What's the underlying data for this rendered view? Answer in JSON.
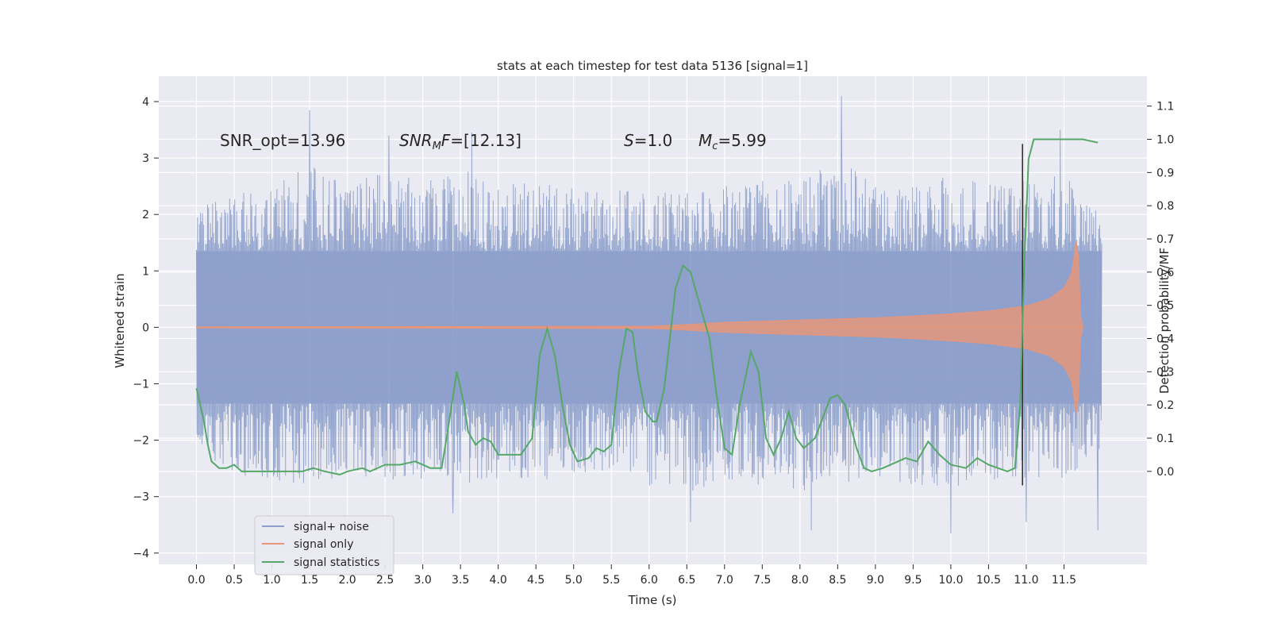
{
  "chart_data": {
    "type": "line",
    "title": "stats at each timestep for test data 5136 [signal=1]",
    "xlabel": "Time (s)",
    "ylabel_left": "Whitened strain",
    "ylabel_right": "Detection probability/MF",
    "xlim": [
      -0.5,
      12.6
    ],
    "ylim_left": [
      -4.2,
      4.45
    ],
    "ylim_right": [
      -0.28,
      1.19
    ],
    "x_ticks": [
      0.0,
      0.5,
      1.0,
      1.5,
      2.0,
      2.5,
      3.0,
      3.5,
      4.0,
      4.5,
      5.0,
      5.5,
      6.0,
      6.5,
      7.0,
      7.5,
      8.0,
      8.5,
      9.0,
      9.5,
      10.0,
      10.5,
      11.0,
      11.5
    ],
    "x_tick_labels": [
      "0.0",
      "0.5",
      "1.0",
      "1.5",
      "2.0",
      "2.5",
      "3.0",
      "3.5",
      "4.0",
      "4.5",
      "5.0",
      "5.5",
      "6.0",
      "6.5",
      "7.0",
      "7.5",
      "8.0",
      "8.5",
      "9.0",
      "9.5",
      "10.0",
      "10.5",
      "11.0",
      "11.5"
    ],
    "y_left_ticks": [
      -4,
      -3,
      -2,
      -1,
      0,
      1,
      2,
      3,
      4
    ],
    "y_left_tick_labels": [
      "−4",
      "−3",
      "−2",
      "−1",
      "0",
      "1",
      "2",
      "3",
      "4"
    ],
    "y_right_ticks": [
      0.0,
      0.1,
      0.2,
      0.3,
      0.4,
      0.5,
      0.6,
      0.7,
      0.8,
      0.9,
      1.0,
      1.1
    ],
    "y_right_tick_labels": [
      "0.0",
      "0.1",
      "0.2",
      "0.3",
      "0.4",
      "0.5",
      "0.6",
      "0.7",
      "0.8",
      "0.9",
      "1.0",
      "1.1"
    ],
    "grid": true,
    "legend_position": "lower-left",
    "annotations": [
      {
        "id": "snr-opt",
        "label": "SNR_opt=13.96"
      },
      {
        "id": "snr-mf",
        "label": "SNR_MF=[12.13]"
      },
      {
        "id": "s-val",
        "label": "S=1.0"
      },
      {
        "id": "mc-val",
        "label": "M_c=5.99"
      }
    ],
    "vline_x": 10.95,
    "series": [
      {
        "id": "noise",
        "name": "signal+ noise",
        "color": "#8da0cb",
        "axis": "left",
        "x_range": [
          0.0,
          12.0
        ],
        "envelope_upper": [
          [
            0.0,
            2.1
          ],
          [
            0.5,
            2.4
          ],
          [
            1.0,
            2.5
          ],
          [
            1.5,
            2.9
          ],
          [
            2.0,
            2.5
          ],
          [
            2.5,
            2.8
          ],
          [
            3.0,
            2.6
          ],
          [
            3.5,
            2.9
          ],
          [
            4.0,
            2.6
          ],
          [
            4.5,
            2.6
          ],
          [
            5.0,
            2.5
          ],
          [
            5.5,
            2.4
          ],
          [
            6.0,
            2.5
          ],
          [
            6.5,
            2.4
          ],
          [
            7.0,
            2.5
          ],
          [
            7.5,
            2.7
          ],
          [
            8.0,
            2.6
          ],
          [
            8.5,
            3.0
          ],
          [
            9.0,
            2.5
          ],
          [
            9.5,
            2.5
          ],
          [
            10.0,
            2.7
          ],
          [
            10.5,
            2.6
          ],
          [
            11.0,
            2.6
          ],
          [
            11.5,
            2.7
          ],
          [
            12.0,
            2.0
          ]
        ],
        "envelope_lower": [
          [
            0.0,
            -2.3
          ],
          [
            0.5,
            -2.6
          ],
          [
            1.0,
            -2.7
          ],
          [
            1.5,
            -2.8
          ],
          [
            2.0,
            -2.6
          ],
          [
            2.5,
            -2.8
          ],
          [
            3.0,
            -2.7
          ],
          [
            3.5,
            -2.9
          ],
          [
            4.0,
            -2.7
          ],
          [
            4.5,
            -2.8
          ],
          [
            5.0,
            -2.6
          ],
          [
            5.5,
            -2.7
          ],
          [
            6.0,
            -2.8
          ],
          [
            6.5,
            -3.0
          ],
          [
            7.0,
            -2.7
          ],
          [
            7.5,
            -2.8
          ],
          [
            8.0,
            -2.9
          ],
          [
            8.5,
            -2.8
          ],
          [
            9.0,
            -2.7
          ],
          [
            9.5,
            -2.8
          ],
          [
            10.0,
            -2.9
          ],
          [
            10.5,
            -2.7
          ],
          [
            11.0,
            -2.8
          ],
          [
            11.5,
            -2.7
          ],
          [
            12.0,
            -2.2
          ]
        ],
        "spikes": [
          [
            1.5,
            3.85
          ],
          [
            8.55,
            4.1
          ],
          [
            2.55,
            3.4
          ],
          [
            3.65,
            3.45
          ],
          [
            11.45,
            3.5
          ],
          [
            3.4,
            -3.3
          ],
          [
            6.55,
            -3.45
          ],
          [
            8.15,
            -3.6
          ],
          [
            10.0,
            -3.65
          ],
          [
            11.95,
            -3.6
          ],
          [
            11.0,
            -3.45
          ]
        ]
      },
      {
        "id": "signal",
        "name": "signal only",
        "color": "#e5967b",
        "axis": "left",
        "x_range": [
          0.0,
          11.75
        ],
        "envelope": [
          [
            0.0,
            0.01
          ],
          [
            6.0,
            0.02
          ],
          [
            6.5,
            0.05
          ],
          [
            7.0,
            0.09
          ],
          [
            7.5,
            0.11
          ],
          [
            8.0,
            0.13
          ],
          [
            8.5,
            0.15
          ],
          [
            9.0,
            0.17
          ],
          [
            9.5,
            0.2
          ],
          [
            10.0,
            0.24
          ],
          [
            10.5,
            0.29
          ],
          [
            11.0,
            0.38
          ],
          [
            11.3,
            0.5
          ],
          [
            11.5,
            0.7
          ],
          [
            11.6,
            0.95
          ],
          [
            11.68,
            1.7
          ],
          [
            11.72,
            0.2
          ],
          [
            11.75,
            0.02
          ]
        ]
      },
      {
        "id": "stats",
        "name": "signal statistics",
        "color": "#55a868",
        "axis": "right",
        "points": [
          [
            0.0,
            0.25
          ],
          [
            0.05,
            0.2
          ],
          [
            0.1,
            0.15
          ],
          [
            0.15,
            0.08
          ],
          [
            0.2,
            0.03
          ],
          [
            0.25,
            0.02
          ],
          [
            0.3,
            0.01
          ],
          [
            0.4,
            0.01
          ],
          [
            0.5,
            0.02
          ],
          [
            0.55,
            0.01
          ],
          [
            0.6,
            0.0
          ],
          [
            0.7,
            0.0
          ],
          [
            0.8,
            0.0
          ],
          [
            1.0,
            0.0
          ],
          [
            1.2,
            0.0
          ],
          [
            1.4,
            0.0
          ],
          [
            1.55,
            0.01
          ],
          [
            1.7,
            0.0
          ],
          [
            1.9,
            -0.01
          ],
          [
            2.0,
            0.0
          ],
          [
            2.2,
            0.01
          ],
          [
            2.3,
            0.0
          ],
          [
            2.5,
            0.02
          ],
          [
            2.7,
            0.02
          ],
          [
            2.9,
            0.03
          ],
          [
            3.1,
            0.01
          ],
          [
            3.25,
            0.01
          ],
          [
            3.35,
            0.15
          ],
          [
            3.45,
            0.3
          ],
          [
            3.55,
            0.2
          ],
          [
            3.6,
            0.12
          ],
          [
            3.7,
            0.08
          ],
          [
            3.8,
            0.1
          ],
          [
            3.9,
            0.09
          ],
          [
            4.0,
            0.05
          ],
          [
            4.2,
            0.05
          ],
          [
            4.3,
            0.05
          ],
          [
            4.45,
            0.1
          ],
          [
            4.55,
            0.35
          ],
          [
            4.65,
            0.43
          ],
          [
            4.75,
            0.35
          ],
          [
            4.85,
            0.2
          ],
          [
            4.95,
            0.08
          ],
          [
            5.05,
            0.03
          ],
          [
            5.2,
            0.04
          ],
          [
            5.3,
            0.07
          ],
          [
            5.4,
            0.06
          ],
          [
            5.5,
            0.08
          ],
          [
            5.6,
            0.3
          ],
          [
            5.7,
            0.43
          ],
          [
            5.78,
            0.42
          ],
          [
            5.85,
            0.3
          ],
          [
            5.95,
            0.18
          ],
          [
            6.05,
            0.15
          ],
          [
            6.1,
            0.15
          ],
          [
            6.2,
            0.25
          ],
          [
            6.35,
            0.55
          ],
          [
            6.45,
            0.62
          ],
          [
            6.55,
            0.6
          ],
          [
            6.65,
            0.52
          ],
          [
            6.8,
            0.4
          ],
          [
            6.9,
            0.22
          ],
          [
            7.0,
            0.07
          ],
          [
            7.1,
            0.05
          ],
          [
            7.2,
            0.2
          ],
          [
            7.35,
            0.36
          ],
          [
            7.45,
            0.3
          ],
          [
            7.55,
            0.1
          ],
          [
            7.65,
            0.05
          ],
          [
            7.75,
            0.1
          ],
          [
            7.85,
            0.18
          ],
          [
            7.95,
            0.1
          ],
          [
            8.05,
            0.07
          ],
          [
            8.2,
            0.1
          ],
          [
            8.4,
            0.22
          ],
          [
            8.5,
            0.23
          ],
          [
            8.6,
            0.2
          ],
          [
            8.75,
            0.07
          ],
          [
            8.85,
            0.01
          ],
          [
            8.95,
            0.0
          ],
          [
            9.1,
            0.01
          ],
          [
            9.3,
            0.03
          ],
          [
            9.4,
            0.04
          ],
          [
            9.55,
            0.03
          ],
          [
            9.7,
            0.09
          ],
          [
            9.85,
            0.05
          ],
          [
            10.0,
            0.02
          ],
          [
            10.2,
            0.01
          ],
          [
            10.35,
            0.04
          ],
          [
            10.5,
            0.02
          ],
          [
            10.75,
            0.0
          ],
          [
            10.85,
            0.01
          ],
          [
            10.92,
            0.2
          ],
          [
            10.97,
            0.6
          ],
          [
            11.03,
            0.94
          ],
          [
            11.1,
            1.0
          ],
          [
            11.2,
            1.0
          ],
          [
            11.5,
            1.0
          ],
          [
            11.75,
            1.0
          ],
          [
            11.95,
            0.99
          ]
        ]
      }
    ]
  }
}
